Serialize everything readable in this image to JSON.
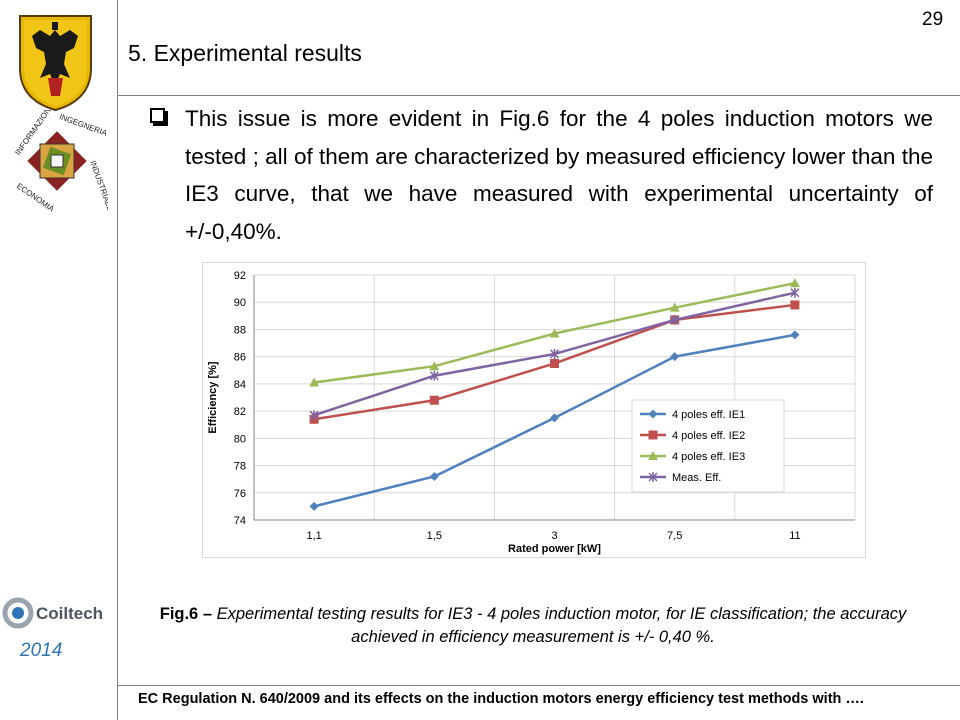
{
  "slide": {
    "title": "5. Experimental results",
    "page_number": "29",
    "bullet_text": "This issue is more evident in Fig.6 for the 4 poles induction motors we tested ; all of them are characterized by measured efficiency lower than the IE3 curve, that we have measured with experimental uncertainty of +/-0,40%.",
    "caption_lead": "Fig.6 – ",
    "caption_rest": "Experimental testing results for IE3 - 4 poles induction motor, for IE classification; the accuracy achieved in efficiency measurement is +/- 0,40 %.",
    "footer": "EC Regulation  N. 640/2009 and its effects on the induction motors energy efficiency test methods with ….",
    "year": "2014",
    "logos": {
      "university_logo": "eagle-crest",
      "department_logo_words": [
        "INFORMAZIONE",
        "INGEGNERIA",
        "ECONOMIA",
        "INDUSTRIALE"
      ],
      "coiltech_logo_text": "Coiltech"
    }
  },
  "colors": {
    "ie1": "#4f81bd",
    "ie2": "#c0504d",
    "ie3": "#9bbb59",
    "meas": "#8064a2",
    "year": "#2e75b6"
  },
  "chart_data": {
    "type": "line",
    "categories": [
      "1,1",
      "1,5",
      "3",
      "7,5",
      "11"
    ],
    "xlabel": "Rated power [kW]",
    "ylabel": "Efficiency [%]",
    "ylim": [
      74,
      92
    ],
    "yticks": [
      74,
      76,
      78,
      80,
      82,
      84,
      86,
      88,
      90,
      92
    ],
    "grid": true,
    "legend_position": "bottom-right",
    "series": [
      {
        "name": "4 poles  eff. IE1",
        "marker": "diamond",
        "color": "#4f81bd",
        "values": [
          75.0,
          77.2,
          81.5,
          86.0,
          87.6
        ]
      },
      {
        "name": "4 poles  eff. IE2",
        "marker": "square",
        "color": "#c0504d",
        "values": [
          81.4,
          82.8,
          85.5,
          88.7,
          89.8
        ]
      },
      {
        "name": "4 poles  eff. IE3",
        "marker": "triangle",
        "color": "#9bbb59",
        "values": [
          84.1,
          85.3,
          87.7,
          89.6,
          91.4
        ]
      },
      {
        "name": "Meas. Eff.",
        "marker": "x",
        "color": "#8064a2",
        "values": [
          81.7,
          84.6,
          86.2,
          88.7,
          90.7
        ]
      }
    ]
  }
}
